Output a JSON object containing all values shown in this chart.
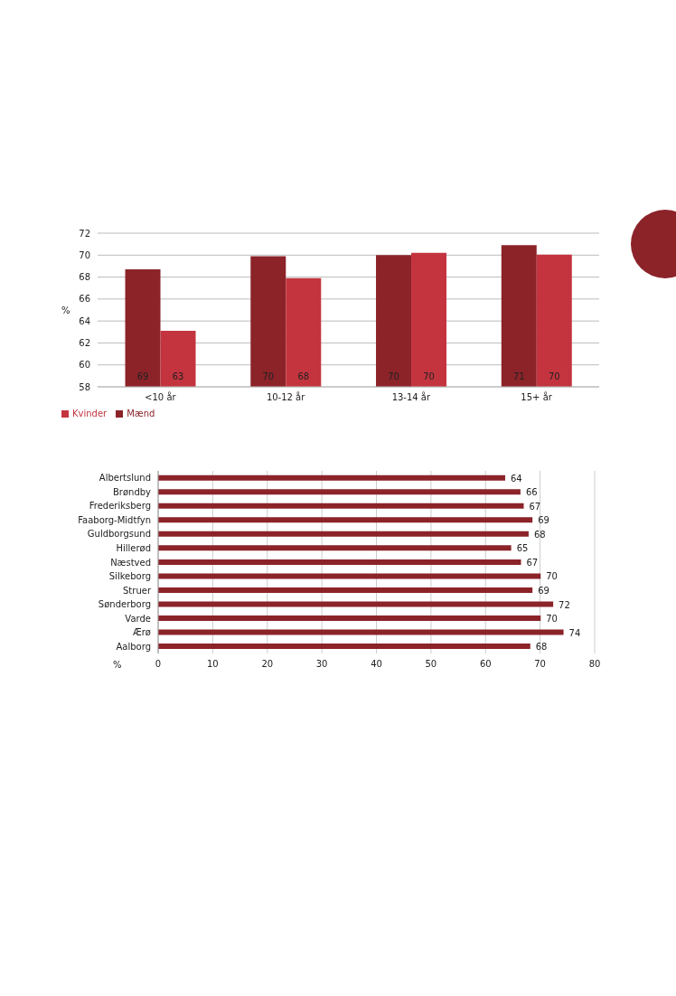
{
  "chart_data": [
    {
      "type": "bar",
      "ylabel": "%",
      "categories": [
        "<10 år",
        "10-12 år",
        "13-14 år",
        "15+ år"
      ],
      "series": [
        {
          "name": "Mænd",
          "color": "#8b2329",
          "values": [
            68.7,
            69.9,
            70.0,
            70.9
          ],
          "value_labels": [
            "69",
            "70",
            "70",
            "71"
          ]
        },
        {
          "name": "Kvinder",
          "color": "#c3343f",
          "values": [
            63.1,
            67.9,
            70.2,
            70.05
          ],
          "value_labels": [
            "63",
            "68",
            "70",
            "70"
          ]
        }
      ],
      "ylim": [
        58,
        72
      ],
      "yticks": [
        58,
        60,
        62,
        64,
        66,
        68,
        70,
        72
      ],
      "grid": "y",
      "legend": "bottom left"
    },
    {
      "type": "bar",
      "orientation": "horizontal",
      "xlabel": "%",
      "categories": [
        "Albertslund",
        "Brøndby",
        "Frederiksberg",
        "Faaborg-Midtfyn",
        "Guldborgsund",
        "Hillerød",
        "Næstved",
        "Silkeborg",
        "Struer",
        "Sønderborg",
        "Varde",
        "Ærø",
        "Aalborg"
      ],
      "series": [
        {
          "color": "#8b2329",
          "values": [
            63.6,
            66.4,
            67.0,
            68.6,
            67.9,
            64.7,
            66.5,
            70.1,
            68.6,
            72.4,
            70.1,
            74.3,
            68.2
          ],
          "value_labels": [
            "64",
            "66",
            "67",
            "69",
            "68",
            "65",
            "67",
            "70",
            "69",
            "72",
            "70",
            "74",
            "68"
          ]
        }
      ],
      "xlim": [
        0,
        80
      ],
      "xticks": [
        0,
        10,
        20,
        30,
        40,
        50,
        60,
        70,
        80
      ],
      "grid": "x",
      "legend": false
    }
  ]
}
